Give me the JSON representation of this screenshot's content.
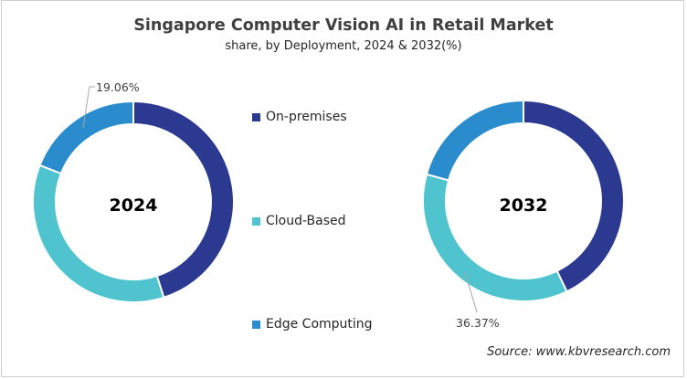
{
  "chart_data": {
    "type": "donut",
    "title": "Singapore Computer Vision AI in Retail Market",
    "subtitle": "share, by Deployment, 2024 & 2032(%)",
    "categories": [
      "On-premises",
      "Cloud-Based",
      "Edge Computing"
    ],
    "colors": [
      "#2b3990",
      "#4fc4cf",
      "#2a8ccc"
    ],
    "legend_position": "center",
    "charts": [
      {
        "label": "2024",
        "values": [
          45.1,
          35.84,
          19.06
        ],
        "data_labels": {
          "Edge Computing": "19.06%"
        }
      },
      {
        "label": "2032",
        "values": [
          42.9,
          36.37,
          20.73
        ],
        "data_labels": {
          "Cloud-Based": "36.37%"
        }
      }
    ],
    "source": "Source: www.kbvresearch.com"
  }
}
